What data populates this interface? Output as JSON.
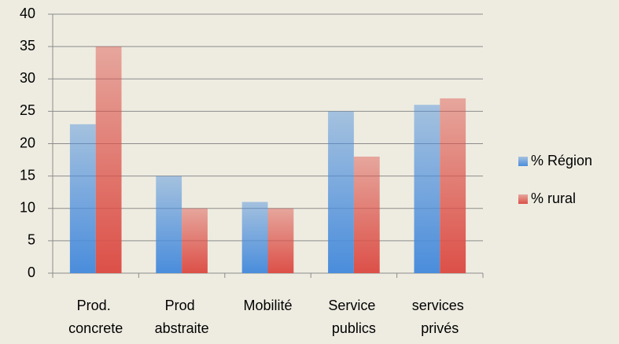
{
  "chart_data": {
    "type": "bar",
    "categories": [
      "Prod. concrete",
      "Prod abstraite",
      "Mobilité",
      "Service publics",
      "services privés"
    ],
    "series": [
      {
        "name": "% Région",
        "color": "#4a8ddc",
        "values": [
          23,
          15,
          11,
          25,
          26
        ]
      },
      {
        "name": "% rural",
        "color": "#dc5048",
        "values": [
          35,
          10,
          10,
          18,
          27
        ]
      }
    ],
    "ylim": [
      0,
      40
    ],
    "yticks": [
      0,
      5,
      10,
      15,
      20,
      25,
      30,
      35,
      40
    ],
    "grid": true,
    "legend": "right"
  }
}
